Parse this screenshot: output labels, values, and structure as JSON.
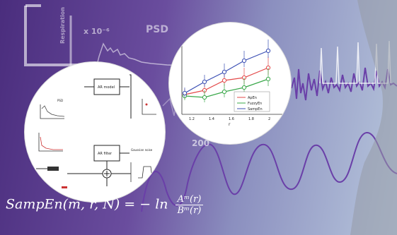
{
  "background": {
    "psd_label": "PSD",
    "exponent_label": "x 10⁻⁶",
    "axis_tick": "200",
    "ylabel": "Respiration"
  },
  "right_inset": {
    "legend": [
      "ApEn",
      "FuzzyEn",
      "SampEn"
    ],
    "x_ticks": [
      "1.2",
      "1.4",
      "1.6",
      "1.8",
      "2"
    ],
    "xlabel": "r",
    "colors": [
      "#e34a4a",
      "#3aa84a",
      "#3b4fb4"
    ]
  },
  "left_inset": {
    "block1": "AR model",
    "block2": "AR filter",
    "noise_label": "Gaussian noise",
    "psd_label": "PSD"
  },
  "formula": {
    "lhs": "SampEn(m, r, N) = − ln",
    "num": "Aᵐ(r)",
    "den": "Bᵐ(r)"
  }
}
